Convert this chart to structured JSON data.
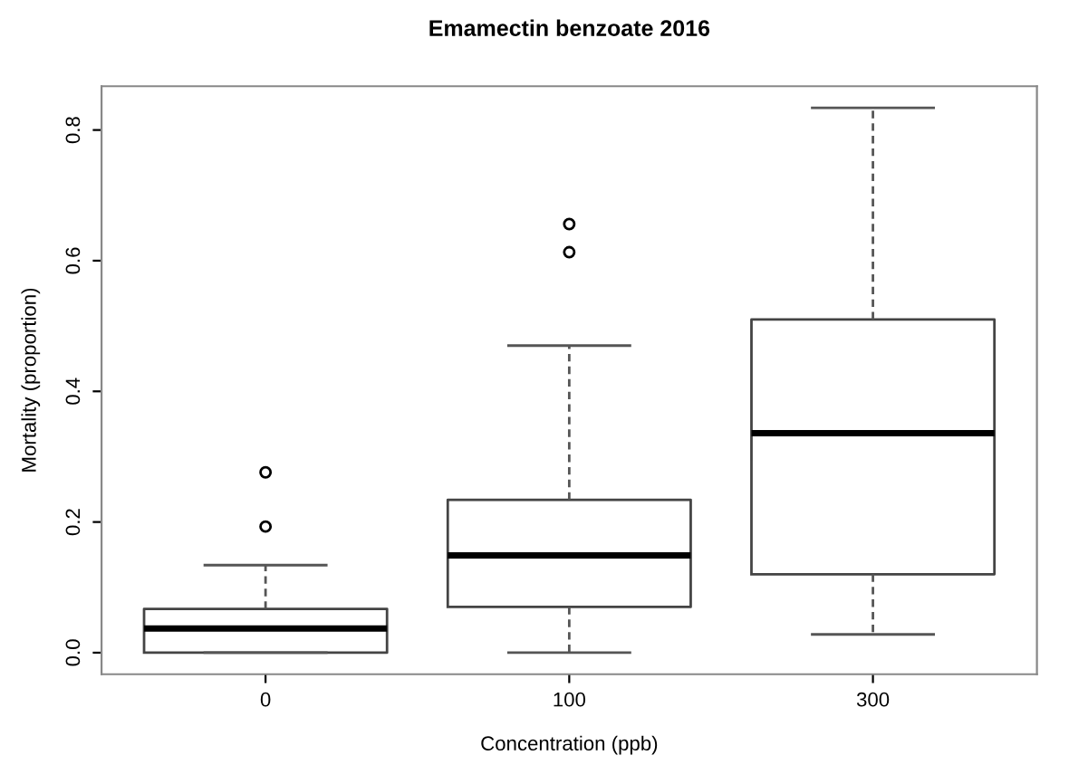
{
  "chart_data": {
    "type": "box",
    "title": "Emamectin benzoate 2016",
    "xlabel": "Concentration (ppb)",
    "ylabel": "Mortality (proportion)",
    "categories": [
      "0",
      "100",
      "300"
    ],
    "boxes": [
      {
        "low": 0,
        "q1": 0,
        "median": 0.037,
        "q3": 0.067,
        "high": 0.134,
        "outliers": [
          0.193,
          0.276
        ]
      },
      {
        "low": 0,
        "q1": 0.07,
        "median": 0.149,
        "q3": 0.234,
        "high": 0.47,
        "outliers": [
          0.613,
          0.656
        ]
      },
      {
        "low": 0.028,
        "q1": 0.12,
        "median": 0.336,
        "q3": 0.51,
        "high": 0.834
      }
    ],
    "ylim": [
      -0.033,
      0.867
    ],
    "yticks": [
      {
        "value": 0,
        "label": "0.0"
      },
      {
        "value": 0.2,
        "label": "0.2"
      },
      {
        "value": 0.4,
        "label": "0.4"
      },
      {
        "value": 0.6,
        "label": "0.6"
      },
      {
        "value": 0.8,
        "label": "0.8"
      }
    ],
    "grid": false,
    "legend": false
  }
}
